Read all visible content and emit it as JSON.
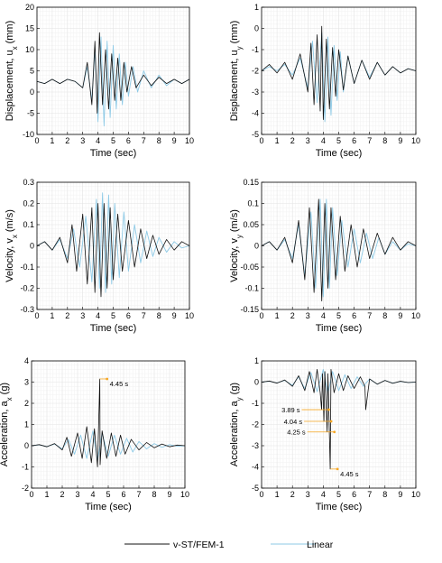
{
  "colors": {
    "fem": "#111111",
    "linear": "#8ecae6",
    "annotation": "#f5a623",
    "grid": "#e3e3e3"
  },
  "legend": {
    "items": [
      "v-ST/FEM-1",
      "Linear"
    ],
    "placement": "bottom-center"
  },
  "chart_data": [
    {
      "id": "ux",
      "type": "line",
      "xlabel": "Time (sec)",
      "ylabel": "Displacement, u",
      "ylabel_sub": "x",
      "ylabel_unit": "(mm)",
      "xlim": [
        0,
        10
      ],
      "ylim": [
        -10,
        20
      ],
      "xticks": [
        0,
        1,
        2,
        3,
        4,
        5,
        6,
        7,
        8,
        9,
        10
      ],
      "yticks": [
        -10,
        -5,
        0,
        5,
        10,
        15,
        20
      ],
      "grid": true,
      "series": [
        {
          "name": "v-ST/FEM-1",
          "x": [
            0,
            0.5,
            1,
            1.5,
            2,
            2.5,
            3,
            3.3,
            3.6,
            3.8,
            3.95,
            4.1,
            4.3,
            4.5,
            4.7,
            4.9,
            5.1,
            5.3,
            5.5,
            5.7,
            5.9,
            6.2,
            6.5,
            7,
            7.5,
            8,
            8.5,
            9,
            9.5,
            10
          ],
          "y": [
            2.5,
            2,
            3,
            2,
            3,
            2.5,
            1,
            7,
            -3,
            12,
            -5,
            14,
            -3,
            10,
            -4,
            9,
            -2,
            8,
            -2,
            7,
            0,
            6,
            1,
            4,
            1.5,
            3.5,
            2,
            3,
            2,
            3
          ]
        },
        {
          "name": "Linear",
          "x": [
            0,
            0.5,
            1,
            1.5,
            2,
            2.5,
            3,
            3.3,
            3.6,
            3.8,
            4,
            4.2,
            4.4,
            4.6,
            4.8,
            5,
            5.2,
            5.4,
            5.6,
            5.8,
            6,
            6.3,
            6.6,
            7,
            7.5,
            8,
            8.5,
            9,
            9.5,
            10
          ],
          "y": [
            2.5,
            2,
            3,
            2,
            3,
            2.5,
            1,
            6,
            -2,
            10,
            -7,
            13,
            -8,
            12,
            -6,
            11,
            -4,
            9,
            -3,
            7,
            -1,
            6,
            0,
            5,
            1,
            4,
            1.5,
            3,
            2,
            3
          ]
        }
      ]
    },
    {
      "id": "uy",
      "type": "line",
      "xlabel": "Time (sec)",
      "ylabel": "Displacement, u",
      "ylabel_sub": "y",
      "ylabel_unit": "(mm)",
      "xlim": [
        0,
        10
      ],
      "ylim": [
        -5,
        1
      ],
      "xticks": [
        0,
        1,
        2,
        3,
        4,
        5,
        6,
        7,
        8,
        9,
        10
      ],
      "yticks": [
        -5,
        -4,
        -3,
        -2,
        -1,
        0,
        1
      ],
      "grid": true,
      "series": [
        {
          "name": "v-ST/FEM-1",
          "x": [
            0,
            0.5,
            1,
            1.5,
            2,
            2.5,
            3,
            3.2,
            3.4,
            3.6,
            3.8,
            3.9,
            4,
            4.2,
            4.4,
            4.6,
            4.8,
            5,
            5.3,
            5.6,
            6,
            6.5,
            7,
            7.5,
            8,
            8.5,
            9,
            9.5,
            10
          ],
          "y": [
            -2,
            -1.7,
            -2.1,
            -1.6,
            -2.4,
            -1.2,
            -3,
            -0.7,
            -3.6,
            -0.3,
            -3.9,
            0.1,
            -4.3,
            -0.5,
            -3.8,
            -0.9,
            -3.2,
            -1,
            -2.9,
            -1.3,
            -2.6,
            -1.5,
            -2.4,
            -1.6,
            -2.2,
            -1.8,
            -2.1,
            -1.9,
            -2
          ]
        },
        {
          "name": "Linear",
          "x": [
            0,
            0.5,
            1,
            1.5,
            2,
            2.5,
            3,
            3.3,
            3.6,
            3.9,
            4.1,
            4.3,
            4.5,
            4.7,
            4.9,
            5.1,
            5.3,
            5.6,
            6,
            6.5,
            7,
            7.5,
            8,
            8.5,
            9,
            9.5,
            10
          ],
          "y": [
            -2,
            -1.8,
            -2,
            -1.7,
            -2.2,
            -1.4,
            -2.8,
            -0.6,
            -3.5,
            -0.2,
            -4.4,
            -0.4,
            -4.1,
            -0.8,
            -3.4,
            -1.1,
            -3,
            -1.3,
            -2.6,
            -1.5,
            -2.3,
            -1.6,
            -2.2,
            -1.8,
            -2.1,
            -1.9,
            -2
          ]
        }
      ]
    },
    {
      "id": "vx",
      "type": "line",
      "xlabel": "Time (sec)",
      "ylabel": "Velocity, v",
      "ylabel_sub": "x",
      "ylabel_unit": "(m/s)",
      "xlim": [
        0,
        10
      ],
      "ylim": [
        -0.3,
        0.3
      ],
      "xticks": [
        0,
        1,
        2,
        3,
        4,
        5,
        6,
        7,
        8,
        9,
        10
      ],
      "yticks": [
        -0.3,
        -0.2,
        -0.1,
        0,
        0.1,
        0.2,
        0.3
      ],
      "grid": true,
      "series": [
        {
          "name": "v-ST/FEM-1",
          "x": [
            0,
            0.5,
            1,
            1.5,
            2,
            2.3,
            2.6,
            3,
            3.3,
            3.6,
            3.8,
            4,
            4.2,
            4.4,
            4.6,
            4.8,
            5,
            5.3,
            5.6,
            6,
            6.4,
            6.8,
            7.2,
            7.6,
            8,
            8.5,
            9,
            9.5,
            10
          ],
          "y": [
            0,
            0.02,
            -0.02,
            0.04,
            -0.08,
            0.1,
            -0.12,
            0.15,
            -0.18,
            0.18,
            -0.22,
            0.2,
            -0.24,
            0.2,
            -0.2,
            0.18,
            -0.16,
            0.15,
            -0.12,
            0.12,
            -0.1,
            0.08,
            -0.06,
            0.05,
            -0.04,
            0.03,
            -0.02,
            0.02,
            0
          ]
        },
        {
          "name": "Linear",
          "x": [
            0,
            0.5,
            1,
            1.5,
            2,
            2.4,
            2.8,
            3.2,
            3.6,
            3.9,
            4.1,
            4.3,
            4.5,
            4.7,
            4.9,
            5.1,
            5.4,
            5.7,
            6,
            6.4,
            6.8,
            7.2,
            7.6,
            8,
            8.5,
            9,
            9.5,
            10
          ],
          "y": [
            0,
            0.02,
            -0.02,
            0.03,
            -0.06,
            0.08,
            -0.1,
            0.14,
            -0.17,
            0.22,
            -0.2,
            0.25,
            -0.22,
            0.24,
            -0.18,
            0.2,
            -0.15,
            0.16,
            -0.12,
            0.1,
            -0.08,
            0.07,
            -0.05,
            0.04,
            -0.03,
            0.02,
            -0.01,
            0
          ]
        }
      ]
    },
    {
      "id": "vy",
      "type": "line",
      "xlabel": "Time (sec)",
      "ylabel": "Velocity, v",
      "ylabel_sub": "y",
      "ylabel_unit": "(m/s)",
      "xlim": [
        0,
        10
      ],
      "ylim": [
        -0.15,
        0.15
      ],
      "xticks": [
        0,
        1,
        2,
        3,
        4,
        5,
        6,
        7,
        8,
        9,
        10
      ],
      "yticks": [
        -0.15,
        -0.1,
        -0.05,
        0,
        0.05,
        0.1,
        0.15
      ],
      "grid": true,
      "series": [
        {
          "name": "v-ST/FEM-1",
          "x": [
            0,
            0.5,
            1,
            1.5,
            2,
            2.4,
            2.8,
            3.1,
            3.4,
            3.7,
            3.9,
            4.1,
            4.3,
            4.5,
            4.8,
            5.1,
            5.4,
            5.8,
            6.2,
            6.6,
            7,
            7.5,
            8,
            8.5,
            9,
            9.5,
            10
          ],
          "y": [
            0,
            0.01,
            -0.01,
            0.02,
            -0.04,
            0.06,
            -0.08,
            0.09,
            -0.11,
            0.11,
            -0.13,
            0.1,
            -0.1,
            0.09,
            -0.08,
            0.07,
            -0.06,
            0.05,
            -0.05,
            0.04,
            -0.03,
            0.03,
            -0.02,
            0.02,
            -0.01,
            0.01,
            0
          ]
        },
        {
          "name": "Linear",
          "x": [
            0,
            0.5,
            1,
            1.5,
            2,
            2.4,
            2.8,
            3.2,
            3.5,
            3.8,
            4,
            4.2,
            4.4,
            4.6,
            4.9,
            5.2,
            5.6,
            6,
            6.4,
            6.8,
            7.2,
            7.6,
            8,
            8.5,
            9,
            9.5,
            10
          ],
          "y": [
            0,
            0.01,
            -0.01,
            0.015,
            -0.03,
            0.05,
            -0.07,
            0.08,
            -0.1,
            0.11,
            -0.12,
            0.11,
            -0.1,
            0.09,
            -0.07,
            0.06,
            -0.05,
            0.04,
            -0.04,
            0.03,
            -0.03,
            0.02,
            -0.02,
            0.01,
            -0.01,
            0.005,
            0
          ]
        }
      ]
    },
    {
      "id": "ax",
      "type": "line",
      "xlabel": "Time (sec)",
      "ylabel": "Acceleration, a",
      "ylabel_sub": "x",
      "ylabel_unit": "(g)",
      "xlim": [
        0,
        10
      ],
      "ylim": [
        -2,
        4
      ],
      "xticks": [
        0,
        1,
        2,
        3,
        4,
        5,
        6,
        7,
        8,
        9,
        10
      ],
      "yticks": [
        -2,
        -1,
        0,
        1,
        2,
        3,
        4
      ],
      "grid": true,
      "annotations": [
        {
          "label": "4.45 s",
          "x": 4.45,
          "y": 3.15
        }
      ],
      "series": [
        {
          "name": "v-ST/FEM-1",
          "x": [
            0,
            0.5,
            1,
            1.5,
            2,
            2.3,
            2.6,
            3,
            3.3,
            3.6,
            3.9,
            4.1,
            4.3,
            4.45,
            4.47,
            4.6,
            4.9,
            5.2,
            5.5,
            5.8,
            6.1,
            6.5,
            7,
            7.5,
            8,
            8.5,
            9,
            9.5,
            10
          ],
          "y": [
            0,
            0.05,
            -0.05,
            0.1,
            -0.2,
            0.4,
            -0.5,
            0.6,
            -0.6,
            0.9,
            -0.8,
            0.8,
            -1,
            3.15,
            -0.9,
            0.7,
            -0.6,
            0.6,
            -0.5,
            0.5,
            -0.4,
            0.3,
            -0.2,
            0.15,
            -0.1,
            0.08,
            -0.05,
            0.03,
            0
          ]
        },
        {
          "name": "Linear",
          "x": [
            0,
            0.5,
            1,
            1.5,
            2,
            2.4,
            2.8,
            3.2,
            3.6,
            4,
            4.3,
            4.6,
            5,
            5.4,
            5.8,
            6.2,
            6.6,
            7,
            7.5,
            8,
            8.5,
            9,
            9.5,
            10
          ],
          "y": [
            0,
            0.04,
            -0.04,
            0.08,
            -0.15,
            0.3,
            -0.4,
            0.5,
            -0.6,
            0.7,
            -0.7,
            0.6,
            -0.5,
            0.5,
            -0.4,
            0.35,
            -0.3,
            0.2,
            -0.15,
            0.1,
            -0.08,
            0.05,
            -0.03,
            0
          ]
        }
      ]
    },
    {
      "id": "ay",
      "type": "line",
      "xlabel": "Time (sec)",
      "ylabel": "Acceleration, a",
      "ylabel_sub": "y",
      "ylabel_unit": "(g)",
      "xlim": [
        0,
        10
      ],
      "ylim": [
        -5,
        1
      ],
      "xticks": [
        0,
        1,
        2,
        3,
        4,
        5,
        6,
        7,
        8,
        9,
        10
      ],
      "yticks": [
        -5,
        -4,
        -3,
        -2,
        -1,
        0,
        1
      ],
      "grid": true,
      "annotations": [
        {
          "label": "3.89 s",
          "x": 3.89,
          "y": -1.3
        },
        {
          "label": "4.04 s",
          "x": 4.04,
          "y": -1.85
        },
        {
          "label": "4.25 s",
          "x": 4.25,
          "y": -2.35
        },
        {
          "label": "4.45 s",
          "x": 4.45,
          "y": -4.1
        }
      ],
      "series": [
        {
          "name": "v-ST/FEM-1",
          "x": [
            0,
            0.5,
            1,
            1.5,
            2,
            2.4,
            2.8,
            3.1,
            3.4,
            3.6,
            3.8,
            3.89,
            3.95,
            4.04,
            4.1,
            4.25,
            4.3,
            4.45,
            4.5,
            4.7,
            5,
            5.3,
            5.6,
            6,
            6.4,
            6.7,
            6.75,
            7,
            7.5,
            8,
            8.5,
            9,
            9.5,
            10
          ],
          "y": [
            0,
            0.05,
            -0.05,
            0.1,
            -0.2,
            0.3,
            -0.4,
            0.5,
            -0.5,
            0.6,
            -0.5,
            -1.3,
            0.4,
            -1.85,
            0.5,
            -2.35,
            0.4,
            -4.1,
            0.6,
            -0.5,
            0.4,
            -0.4,
            0.3,
            -0.3,
            0.25,
            -0.2,
            -1.3,
            0.15,
            -0.1,
            0.08,
            -0.06,
            0.04,
            -0.02,
            0
          ]
        },
        {
          "name": "Linear",
          "x": [
            0,
            0.5,
            1,
            1.5,
            2,
            2.4,
            2.8,
            3.2,
            3.6,
            4,
            4.3,
            4.6,
            5,
            5.4,
            5.8,
            6.2,
            6.6,
            7,
            7.5,
            8,
            8.5,
            9,
            9.5,
            10
          ],
          "y": [
            0,
            0.04,
            -0.04,
            0.08,
            -0.15,
            0.25,
            -0.3,
            0.45,
            -0.45,
            0.6,
            -0.55,
            0.5,
            -0.4,
            0.35,
            -0.3,
            0.25,
            -0.2,
            0.15,
            -0.1,
            0.08,
            -0.05,
            0.03,
            -0.02,
            0
          ]
        }
      ]
    }
  ]
}
